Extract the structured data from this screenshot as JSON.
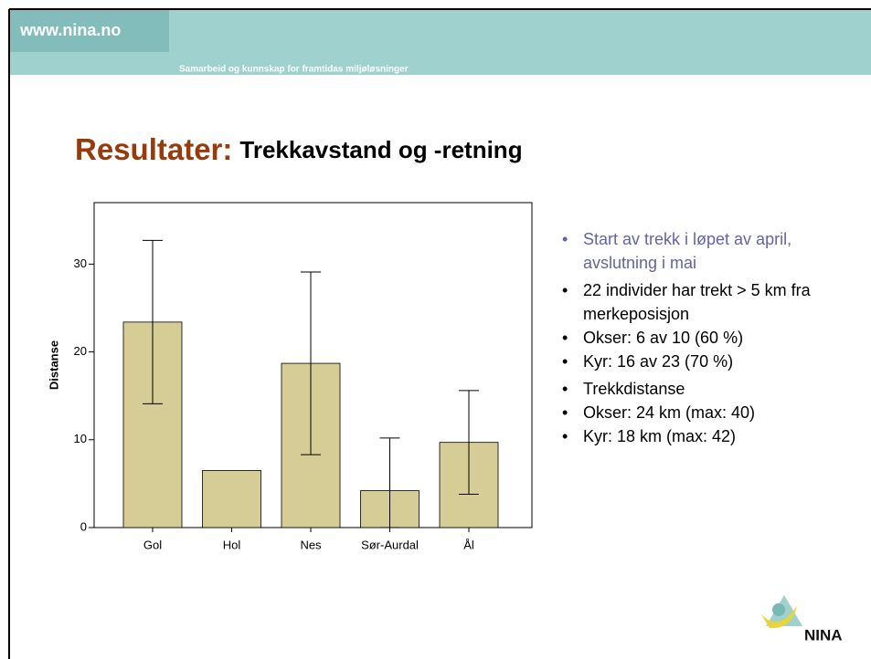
{
  "header": {
    "url": "www.nina.no",
    "tagline": "Samarbeid  og kunnskap for framtidas miljøløsninger"
  },
  "title": {
    "lead": "Resultater:",
    "rest": "Trekkavstand og -retning"
  },
  "bullets": [
    {
      "text": "Start av trekk i løpet av april, avslutning i mai"
    },
    {
      "text": "22 individer har trekt > 5 km fra merkeposisjon",
      "sub": [
        "Okser: 6 av 10 (60 %)",
        "Kyr: 16 av 23 (70 %)"
      ]
    },
    {
      "text": "Trekkdistanse",
      "sub": [
        "Okser: 24 km (max: 40)",
        "Kyr: 18 km (max: 42)"
      ]
    }
  ],
  "logo": {
    "text": "NINA"
  },
  "chart_data": {
    "type": "bar",
    "y_label": "Distanse",
    "categories": [
      "Gol",
      "Hol",
      "Nes",
      "Sør-Aurdal",
      "Ål"
    ],
    "values": [
      23.4,
      6.5,
      18.7,
      4.2,
      9.7
    ],
    "errors": [
      9.3,
      null,
      10.4,
      6.0,
      5.9
    ],
    "color": "#d6cc96",
    "ylim": [
      0,
      37
    ],
    "yticks": [
      0,
      10,
      20,
      30
    ]
  }
}
